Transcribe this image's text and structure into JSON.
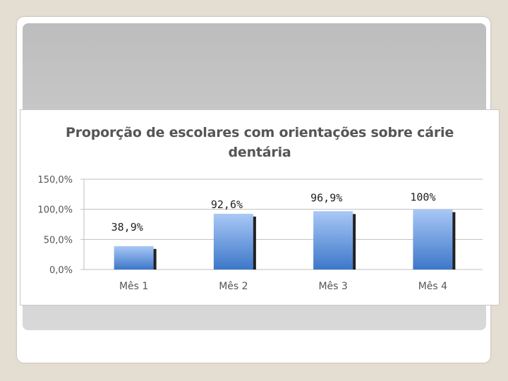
{
  "slide": {
    "title_lines": [
      "Proporção de escolares com orientações sobre cárie",
      "dentária"
    ]
  },
  "chart_data": {
    "type": "bar",
    "title": "Proporção de escolares com orientações sobre cárie dentária",
    "categories": [
      "Mês 1",
      "Mês 2",
      "Mês 3",
      "Mês 4"
    ],
    "values": [
      38.9,
      92.6,
      96.9,
      100
    ],
    "data_labels": [
      "38,9%",
      "92,6%",
      "96,9%",
      "100%"
    ],
    "yticks": [
      "0,0%",
      "50,0%",
      "100,0%",
      "150,0%"
    ],
    "ylim": [
      0,
      150
    ],
    "grid": true,
    "legend": "none",
    "colors": {
      "bar_top": "#a9c8f6",
      "bar_bottom": "#3d77c9",
      "shadow": "#222222",
      "axis": "#bfbfbf",
      "text": "#555555"
    }
  }
}
